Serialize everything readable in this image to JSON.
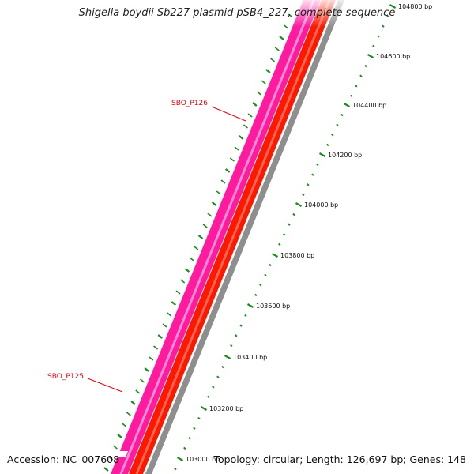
{
  "title": "Shigella boydii Sb227 plasmid pSB4_227, complete sequence",
  "footer": {
    "accession": "Accession: NC_007608",
    "topology": "Topology: circular; Length: 126,697 bp; Genes: 148"
  },
  "tick_labels": [
    "104800 bp",
    "104600 bp",
    "104400 bp",
    "104200 bp",
    "104000 bp",
    "103800 bp",
    "103600 bp",
    "103400 bp",
    "103200 bp",
    "103000 bp"
  ],
  "genes": [
    {
      "label": "SBO_P126",
      "strand": "forward",
      "color": "#ff1a9e"
    },
    {
      "label": "SBO_P125",
      "strand": "forward",
      "color": "#ff1a9e"
    }
  ],
  "tracks": {
    "reverse_color": "#ff1800",
    "backbone_color": "#8e8e8e",
    "tick_color": "#1c8a1c"
  }
}
